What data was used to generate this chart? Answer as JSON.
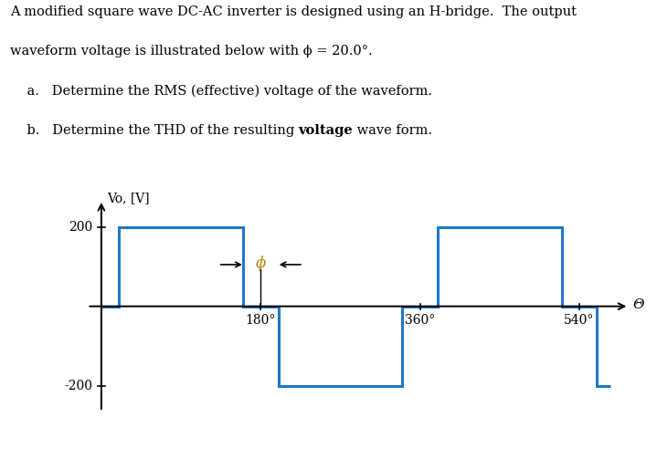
{
  "phi_deg": 20.0,
  "amplitude": 200,
  "ylabel": "Vo, [V]",
  "xlabel": "Θ",
  "y_ticks": [
    200,
    -200
  ],
  "x_ticks_deg": [
    180,
    360,
    540
  ],
  "waveform_color": "#1f78c8",
  "axis_color": "#000000",
  "text_color": "#000000",
  "phi_color": "#b8860b",
  "background_color": "#ffffff",
  "line_width": 2.2,
  "fig_width": 7.19,
  "fig_height": 4.92,
  "dpi": 100,
  "line1": "A modified square wave DC-AC inverter is designed using an H-bridge.  The output",
  "line2": "waveform voltage is illustrated below with ϕ = 20.0°.",
  "line3a": "    a.   Determine the RMS (effective) voltage of the waveform.",
  "line4b_pre": "    b.   Determine the THD of the resulting ",
  "line4b_bold": "voltage",
  "line4b_post": " wave form."
}
